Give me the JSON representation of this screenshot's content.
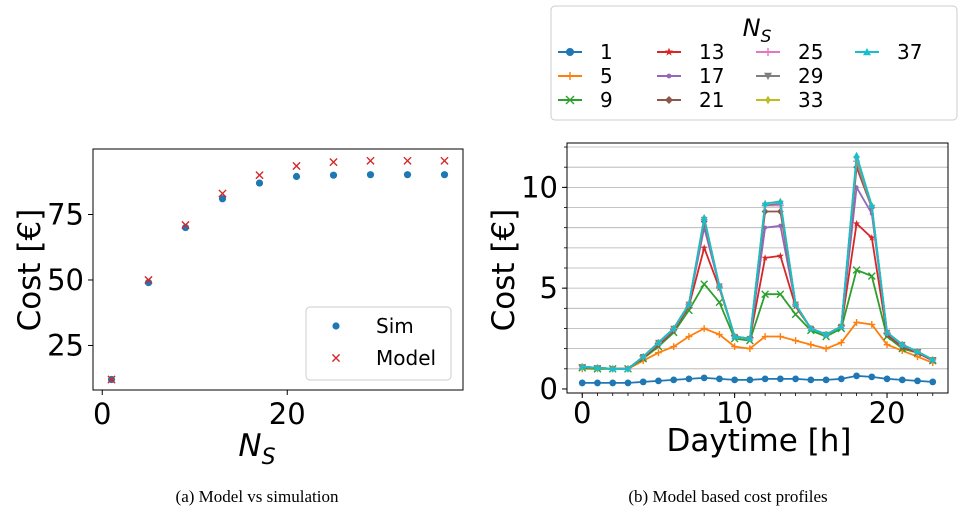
{
  "chart_data": [
    {
      "type": "scatter",
      "caption": "(a) Model vs simulation",
      "xlabel_base": "N",
      "xlabel_sub": "S",
      "ylabel": "Cost [€]",
      "xlim": [
        -1,
        39
      ],
      "ylim": [
        8,
        100
      ],
      "xticks": [
        0,
        20
      ],
      "yticks": [
        25,
        50,
        75
      ],
      "legend_position": "lower right",
      "series": [
        {
          "name": "Sim",
          "marker": "circle",
          "color": "#1f77b4",
          "x": [
            1,
            5,
            9,
            13,
            17,
            21,
            25,
            29,
            33,
            37
          ],
          "y": [
            12,
            49,
            70,
            81,
            87,
            89.5,
            90,
            90.2,
            90.2,
            90.2
          ]
        },
        {
          "name": "Model",
          "marker": "x",
          "color": "#d62728",
          "x": [
            1,
            5,
            9,
            13,
            17,
            21,
            25,
            29,
            33,
            37
          ],
          "y": [
            12,
            50,
            71,
            83,
            90,
            93.5,
            95,
            95.5,
            95.5,
            95.5
          ]
        }
      ]
    },
    {
      "type": "line",
      "caption": "(b) Model based cost profiles",
      "xlabel": "Daytime [h]",
      "ylabel": "Cost [€]",
      "xlim": [
        -1,
        24
      ],
      "ylim": [
        -0.2,
        12.2
      ],
      "xticks": [
        0,
        10,
        20
      ],
      "yticks": [
        0,
        5,
        10
      ],
      "grid": "horizontal minor",
      "legend_position": "top, outside",
      "legend_title_base": "N",
      "legend_title_sub": "S",
      "x": [
        0,
        1,
        2,
        3,
        4,
        5,
        6,
        7,
        8,
        9,
        10,
        11,
        12,
        13,
        14,
        15,
        16,
        17,
        18,
        19,
        20,
        21,
        22,
        23
      ],
      "series": [
        {
          "name": "1",
          "color": "#1f77b4",
          "marker": "circle",
          "values": [
            0.3,
            0.3,
            0.3,
            0.3,
            0.35,
            0.4,
            0.45,
            0.5,
            0.55,
            0.5,
            0.45,
            0.45,
            0.5,
            0.5,
            0.5,
            0.45,
            0.45,
            0.5,
            0.65,
            0.6,
            0.5,
            0.45,
            0.4,
            0.35
          ]
        },
        {
          "name": "5",
          "color": "#ff7f0e",
          "marker": "plus",
          "values": [
            1.0,
            1.0,
            1.0,
            1.0,
            1.4,
            1.8,
            2.1,
            2.6,
            3.0,
            2.7,
            2.1,
            2.0,
            2.6,
            2.6,
            2.4,
            2.2,
            2.0,
            2.3,
            3.3,
            3.2,
            2.2,
            1.9,
            1.6,
            1.3
          ]
        },
        {
          "name": "9",
          "color": "#2ca02c",
          "marker": "x",
          "values": [
            1.05,
            1.0,
            1.0,
            1.0,
            1.5,
            2.1,
            2.8,
            3.9,
            5.2,
            4.3,
            2.5,
            2.4,
            4.7,
            4.7,
            3.7,
            2.9,
            2.6,
            3.0,
            5.9,
            5.6,
            2.6,
            2.0,
            1.8,
            1.4
          ]
        },
        {
          "name": "13",
          "color": "#d62728",
          "marker": "star",
          "values": [
            1.1,
            1.05,
            1.0,
            1.0,
            1.55,
            2.2,
            2.9,
            4.1,
            7.0,
            5.0,
            2.6,
            2.5,
            6.5,
            6.6,
            4.1,
            3.0,
            2.7,
            3.1,
            8.2,
            7.5,
            2.7,
            2.1,
            1.8,
            1.4
          ]
        },
        {
          "name": "17",
          "color": "#9467bd",
          "marker": "dot",
          "values": [
            1.1,
            1.05,
            1.0,
            1.0,
            1.6,
            2.25,
            2.95,
            4.2,
            8.0,
            5.1,
            2.6,
            2.5,
            8.0,
            8.1,
            4.2,
            3.0,
            2.7,
            3.1,
            10.0,
            8.7,
            2.8,
            2.15,
            1.85,
            1.45
          ]
        },
        {
          "name": "21",
          "color": "#8c564b",
          "marker": "diamond",
          "values": [
            1.1,
            1.05,
            1.0,
            1.0,
            1.6,
            2.3,
            3.0,
            4.2,
            8.3,
            5.1,
            2.6,
            2.5,
            8.8,
            8.8,
            4.2,
            3.0,
            2.7,
            3.1,
            11.0,
            9.0,
            2.8,
            2.2,
            1.85,
            1.45
          ]
        },
        {
          "name": "25",
          "color": "#e377c2",
          "marker": "plus",
          "values": [
            1.1,
            1.05,
            1.0,
            1.0,
            1.6,
            2.3,
            3.0,
            4.2,
            8.4,
            5.1,
            2.6,
            2.5,
            9.1,
            9.1,
            4.2,
            3.0,
            2.7,
            3.1,
            11.3,
            9.0,
            2.8,
            2.2,
            1.85,
            1.45
          ]
        },
        {
          "name": "29",
          "color": "#7f7f7f",
          "marker": "triangle-down",
          "values": [
            1.1,
            1.05,
            1.0,
            1.0,
            1.6,
            2.3,
            3.0,
            4.2,
            8.4,
            5.1,
            2.6,
            2.5,
            9.1,
            9.2,
            4.2,
            3.0,
            2.7,
            3.1,
            11.4,
            9.0,
            2.8,
            2.2,
            1.85,
            1.45
          ]
        },
        {
          "name": "33",
          "color": "#bcbd22",
          "marker": "thin-diamond",
          "values": [
            1.1,
            1.05,
            1.0,
            1.0,
            1.6,
            2.3,
            3.0,
            4.2,
            8.5,
            5.1,
            2.6,
            2.5,
            9.2,
            9.3,
            4.2,
            3.0,
            2.7,
            3.1,
            11.5,
            9.1,
            2.8,
            2.2,
            1.85,
            1.45
          ]
        },
        {
          "name": "37",
          "color": "#17becf",
          "marker": "triangle-up",
          "values": [
            1.1,
            1.05,
            1.0,
            1.0,
            1.6,
            2.3,
            3.0,
            4.2,
            8.5,
            5.1,
            2.6,
            2.5,
            9.2,
            9.3,
            4.2,
            3.0,
            2.7,
            3.1,
            11.6,
            9.1,
            2.8,
            2.2,
            1.85,
            1.45
          ]
        }
      ]
    }
  ]
}
